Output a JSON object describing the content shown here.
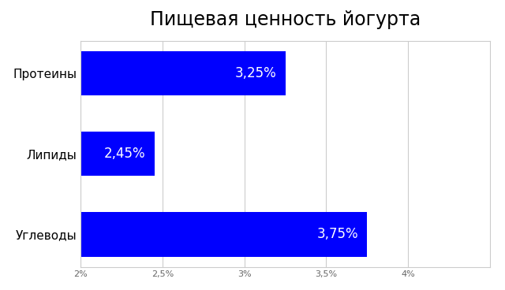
{
  "chart_data": {
    "type": "bar",
    "orientation": "horizontal",
    "title": "Пищевая ценность йогурта",
    "categories": [
      "Протеины",
      "Липиды",
      "Углеводы"
    ],
    "values": [
      3.25,
      2.45,
      3.75
    ],
    "value_labels": [
      "3,25%",
      "2,45%",
      "3,75%"
    ],
    "data_labels": true,
    "color": "#0000ff",
    "xlim": [
      2,
      4.5
    ],
    "xticks": [
      {
        "value": 2,
        "label": "2%"
      },
      {
        "value": 2.5,
        "label": "2,5%"
      },
      {
        "value": 3,
        "label": "3%"
      },
      {
        "value": 3.5,
        "label": "3,5%"
      },
      {
        "value": 4,
        "label": "4%"
      }
    ],
    "grid": true
  }
}
